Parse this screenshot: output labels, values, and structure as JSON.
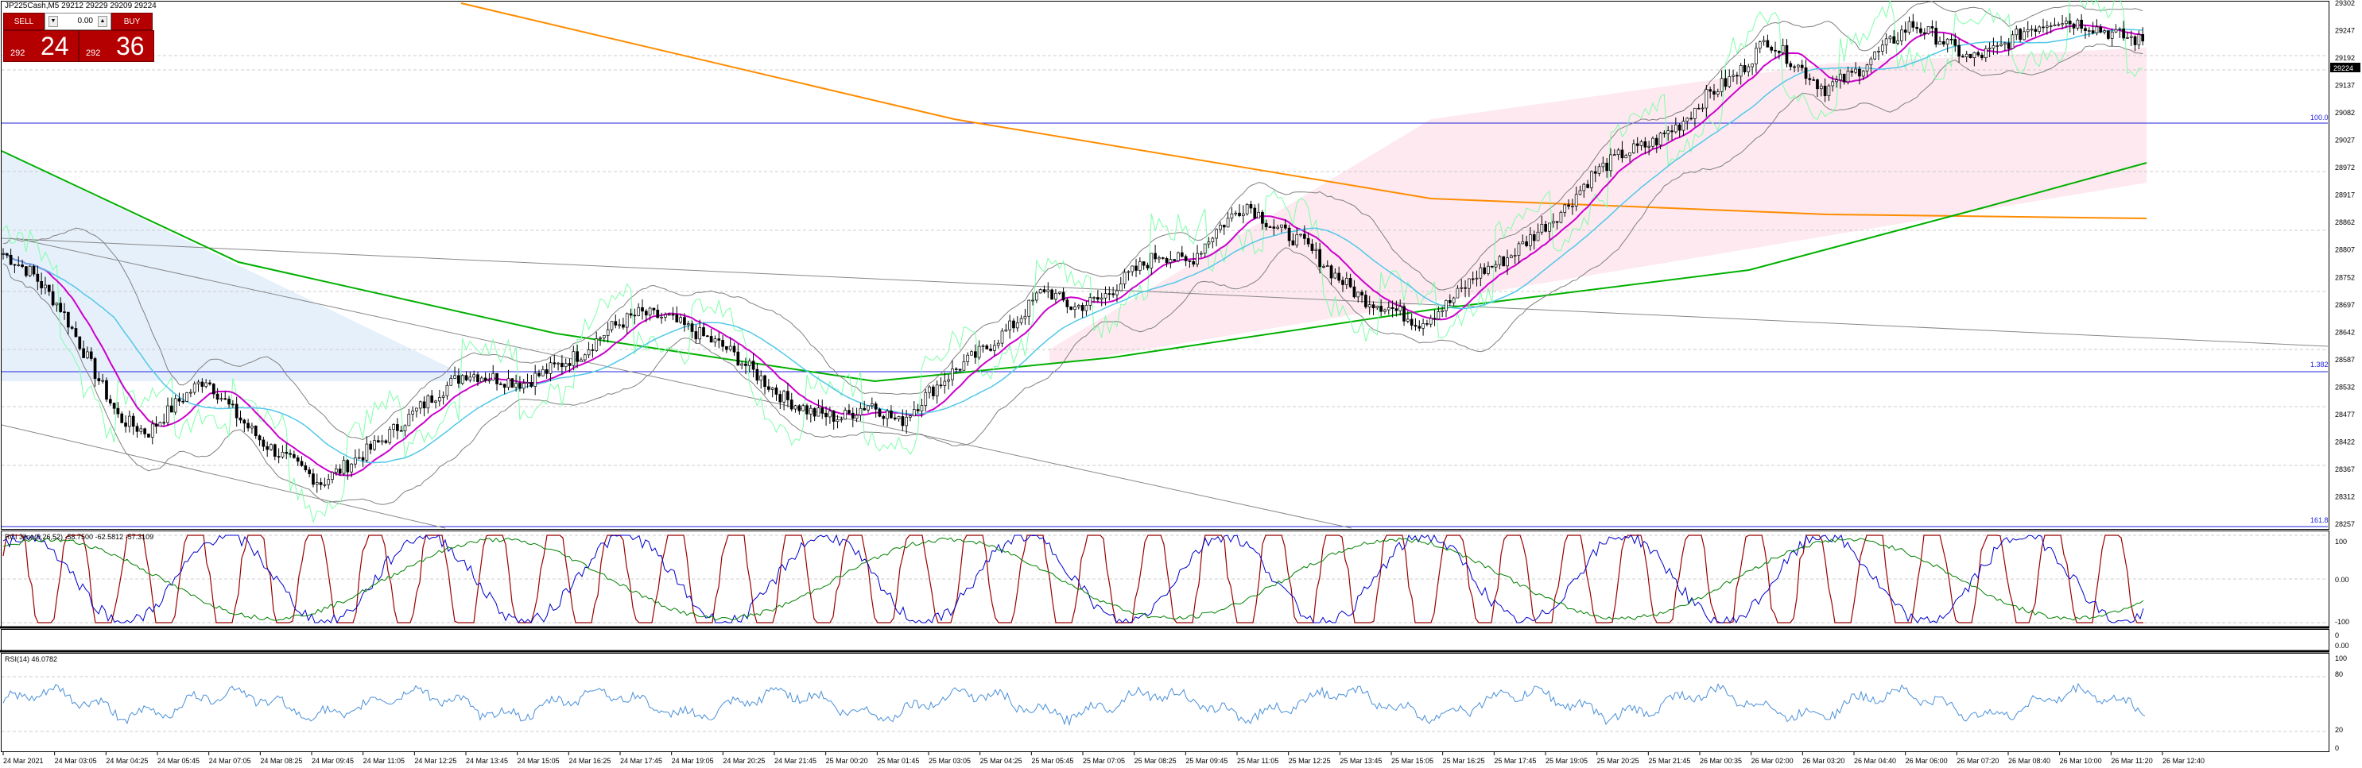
{
  "header": {
    "symbol_line": "JP225Cash,M5  29212 29229 29209 29224"
  },
  "trade_panel": {
    "sell_label": "SELL",
    "buy_label": "BUY",
    "volume": "0.00",
    "bid_small": "292",
    "bid_big": "24",
    "ask_small": "292",
    "ask_big": "36",
    "color": "#b40000"
  },
  "price_axis": {
    "labels": [
      "29302",
      "29247",
      "29192",
      "29137",
      "29082",
      "29027",
      "28972",
      "28917",
      "28862",
      "28807",
      "28752",
      "28697",
      "28642",
      "28587",
      "28532",
      "28477",
      "28422",
      "28367",
      "28312",
      "28257"
    ],
    "current_price": "29224"
  },
  "fib_levels": {
    "level_100": "100.0",
    "level_1382": "1.382",
    "level_1618": "161.8"
  },
  "time_axis": {
    "labels": [
      "24 Mar 2021",
      "24 Mar 03:05",
      "24 Mar 04:25",
      "24 Mar 05:45",
      "24 Mar 07:05",
      "24 Mar 08:25",
      "24 Mar 09:45",
      "24 Mar 11:05",
      "24 Mar 12:25",
      "24 Mar 13:45",
      "24 Mar 15:05",
      "24 Mar 16:25",
      "24 Mar 17:45",
      "24 Mar 19:05",
      "24 Mar 20:25",
      "24 Mar 21:45",
      "25 Mar 00:20",
      "25 Mar 01:45",
      "25 Mar 03:05",
      "25 Mar 04:25",
      "25 Mar 05:45",
      "25 Mar 07:05",
      "25 Mar 08:25",
      "25 Mar 09:45",
      "25 Mar 11:05",
      "25 Mar 12:25",
      "25 Mar 13:45",
      "25 Mar 15:05",
      "25 Mar 16:25",
      "25 Mar 17:45",
      "25 Mar 19:05",
      "25 Mar 20:25",
      "25 Mar 21:45",
      "26 Mar 00:35",
      "26 Mar 02:00",
      "26 Mar 03:20",
      "26 Mar 04:40",
      "26 Mar 06:00",
      "26 Mar 07:20",
      "26 Mar 08:40",
      "26 Mar 10:00",
      "26 Mar 11:20",
      "26 Mar 12:40"
    ]
  },
  "indicators": {
    "rci": {
      "title": "RCI 3line(9,26,52) -58.7500 -62.5812 -57.3109",
      "levels": [
        "100",
        "0.00",
        "-100"
      ]
    },
    "sub_empty": {
      "levels": [
        "0",
        "0.00"
      ]
    },
    "rsi": {
      "title": "RSI(14) 46.0782",
      "levels": [
        "100",
        "80",
        "20",
        "0"
      ]
    }
  },
  "chart_data": {
    "type": "candlestick",
    "symbol": "JP225Cash",
    "timeframe": "M5",
    "ylim": [
      28257,
      29302
    ],
    "close_path": [
      28800,
      28760,
      28690,
      28580,
      28470,
      28440,
      28500,
      28550,
      28480,
      28420,
      28380,
      28340,
      28380,
      28420,
      28470,
      28520,
      28560,
      28550,
      28540,
      28570,
      28600,
      28650,
      28680,
      28670,
      28640,
      28610,
      28560,
      28510,
      28480,
      28470,
      28500,
      28460,
      28520,
      28570,
      28610,
      28660,
      28730,
      28690,
      28710,
      28760,
      28800,
      28780,
      28850,
      28900,
      28850,
      28820,
      28760,
      28710,
      28690,
      28660,
      28700,
      28760,
      28790,
      28840,
      28890,
      28960,
      29000,
      29020,
      29060,
      29120,
      29160,
      29230,
      29180,
      29130,
      29160,
      29210,
      29260,
      29230,
      29190,
      29210,
      29250,
      29270,
      29260,
      29240,
      29225
    ],
    "colors": {
      "ma_long": "#ff8c00",
      "ma_mid": "#00b000",
      "envelope": "#7fffaa",
      "bollinger": "#808080",
      "ma_fast": "#cc00cc",
      "ma_signal": "#50c8e8",
      "rci_fast": "#990000",
      "rci_mid": "#0000cc",
      "rci_slow": "#008000",
      "rsi": "#4a90d9",
      "fib_line": "#2222dd"
    }
  }
}
